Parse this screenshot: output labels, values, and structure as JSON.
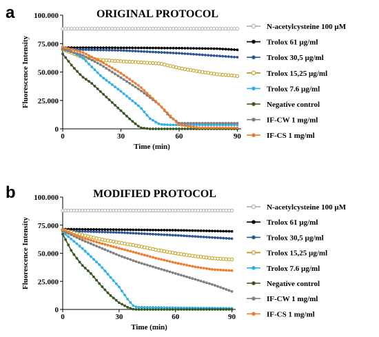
{
  "chart_data": [
    {
      "type": "line",
      "panel_letter": "a",
      "title": "ORIGINAL  PROTOCOL",
      "xlabel": "Time (min)",
      "ylabel": "Fluorescence Intensity",
      "xlim": [
        0,
        92
      ],
      "ylim": [
        0,
        100000
      ],
      "x_ticks": [
        0,
        30,
        60,
        90
      ],
      "x_tick_labels": [
        "0",
        "30",
        "60",
        "90"
      ],
      "y_ticks": [
        0,
        25000,
        50000,
        75000,
        100000
      ],
      "y_tick_labels": [
        "0",
        "25.000",
        "50.000",
        "75.000",
        "100.000"
      ],
      "grid": false,
      "legend_position": "right",
      "series": [
        {
          "name": "N-acetylcysteine 100 µM",
          "color": "#a6a6a6",
          "marker": "open-circle",
          "x": [
            0,
            90
          ],
          "y": [
            88000,
            88000
          ]
        },
        {
          "name": "Trolox  61 µg/ml",
          "color": "#000000",
          "marker": "dot",
          "x": [
            0,
            30,
            60,
            80,
            90
          ],
          "y": [
            71500,
            71300,
            71000,
            70500,
            69500
          ]
        },
        {
          "name": "Trolox  30,5 µg/ml",
          "color": "#2f5597",
          "marker": "dot",
          "x": [
            0,
            30,
            60,
            90
          ],
          "y": [
            70000,
            69000,
            66500,
            63000
          ]
        },
        {
          "name": "Trolox  15,25 µg/ml",
          "color": "#bf9000",
          "marker": "open-circle",
          "x": [
            0,
            10,
            20,
            30,
            40,
            50,
            55,
            60,
            70,
            80,
            90
          ],
          "y": [
            70000,
            63000,
            60500,
            59500,
            58500,
            57500,
            55500,
            53500,
            50500,
            48000,
            46500
          ]
        },
        {
          "name": "Trolox  7.6 µg/ml",
          "color": "#2eb0e8",
          "marker": "dot",
          "x": [
            0,
            10,
            20,
            30,
            40,
            45,
            50,
            55,
            60,
            70,
            80,
            90
          ],
          "y": [
            72000,
            63000,
            46000,
            33000,
            19000,
            9000,
            4000,
            3500,
            3500,
            3500,
            3500,
            3500
          ]
        },
        {
          "name": "Negative control",
          "color": "#375623",
          "marker": "dot",
          "x": [
            0,
            5,
            10,
            15,
            20,
            25,
            30,
            35,
            40,
            45,
            50,
            60,
            90
          ],
          "y": [
            66000,
            55000,
            46000,
            40000,
            32000,
            24000,
            16000,
            8000,
            1000,
            0,
            0,
            0,
            0
          ]
        },
        {
          "name": "IF-CW  1 mg/ml",
          "color": "#808080",
          "marker": "dot",
          "x": [
            0,
            10,
            20,
            30,
            40,
            50,
            55,
            60,
            70,
            80,
            90
          ],
          "y": [
            70000,
            65000,
            56000,
            45000,
            34000,
            21000,
            11000,
            5000,
            5000,
            5000,
            5000
          ]
        },
        {
          "name": "IF-CS 1 mg/ml",
          "color": "#ed7d31",
          "marker": "dot",
          "x": [
            0,
            10,
            20,
            30,
            40,
            50,
            60,
            70,
            80,
            90
          ],
          "y": [
            72000,
            67500,
            59000,
            49000,
            37000,
            21000,
            3500,
            1000,
            1000,
            1000
          ]
        }
      ]
    },
    {
      "type": "line",
      "panel_letter": "b",
      "title": "MODIFIED PROTOCOL",
      "xlabel": "Time (min)",
      "ylabel": "Fluorescence Intensity",
      "xlim": [
        0,
        92
      ],
      "ylim": [
        0,
        100000
      ],
      "x_ticks": [
        0,
        30,
        60,
        90
      ],
      "x_tick_labels": [
        "0",
        "30",
        "60",
        "90"
      ],
      "y_ticks": [
        0,
        25000,
        50000,
        75000,
        100000
      ],
      "y_tick_labels": [
        "0",
        "25.000",
        "50.000",
        "75.000",
        "100.000"
      ],
      "grid": false,
      "legend_position": "right",
      "series": [
        {
          "name": "N-acetylcysteine 100 µM",
          "color": "#a6a6a6",
          "marker": "open-circle",
          "x": [
            0,
            90
          ],
          "y": [
            88000,
            88000
          ]
        },
        {
          "name": "Trolox 61 µg/ml",
          "color": "#000000",
          "marker": "dot",
          "x": [
            0,
            30,
            60,
            90
          ],
          "y": [
            71500,
            71000,
            70500,
            69500
          ]
        },
        {
          "name": "Trolox 30,5 µg/ml",
          "color": "#2f5597",
          "marker": "dot",
          "x": [
            0,
            30,
            60,
            90
          ],
          "y": [
            70000,
            68500,
            66000,
            63000
          ]
        },
        {
          "name": "Trolox 15,25 µg/ml",
          "color": "#bf9000",
          "marker": "open-circle",
          "x": [
            0,
            10,
            20,
            30,
            40,
            50,
            60,
            70,
            80,
            90
          ],
          "y": [
            71000,
            66500,
            62500,
            59500,
            56500,
            53000,
            50000,
            47500,
            45500,
            44500
          ]
        },
        {
          "name": "Trolox 7.6 µg/ml",
          "color": "#2eb0e8",
          "marker": "dot",
          "x": [
            0,
            10,
            20,
            30,
            35,
            38,
            40,
            60,
            90
          ],
          "y": [
            69000,
            55000,
            39000,
            20000,
            8000,
            2500,
            2000,
            1500,
            1000
          ]
        },
        {
          "name": "Negative control",
          "color": "#375623",
          "marker": "dot",
          "x": [
            0,
            5,
            10,
            15,
            20,
            25,
            30,
            35,
            38,
            40,
            60,
            90
          ],
          "y": [
            67000,
            51000,
            40000,
            32000,
            22000,
            13000,
            6000,
            1500,
            0,
            0,
            0,
            0
          ]
        },
        {
          "name": "IF-CW  1 mg/ml",
          "color": "#808080",
          "marker": "dot",
          "x": [
            0,
            10,
            20,
            30,
            40,
            50,
            60,
            70,
            80,
            90
          ],
          "y": [
            70000,
            62000,
            55000,
            48000,
            42000,
            37000,
            32000,
            27000,
            22000,
            16000
          ]
        },
        {
          "name": "IF-CS  1 mg/ml",
          "color": "#ed7d31",
          "marker": "dot",
          "x": [
            0,
            10,
            20,
            30,
            40,
            50,
            60,
            70,
            80,
            90
          ],
          "y": [
            71000,
            64000,
            59000,
            54500,
            50000,
            45500,
            41500,
            38000,
            35500,
            34500
          ]
        }
      ]
    }
  ]
}
